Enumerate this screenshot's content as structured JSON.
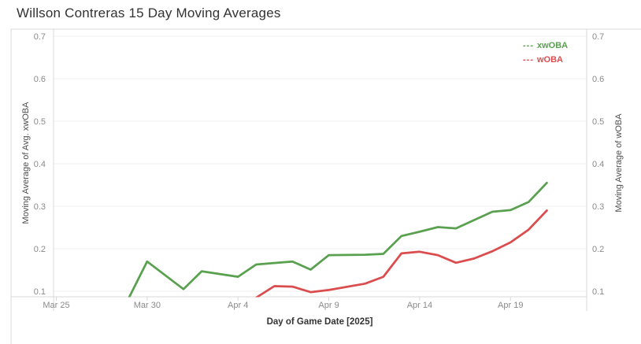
{
  "title": "Willson Contreras 15 Day Moving Averages",
  "legend": {
    "items": [
      {
        "dashes": "---",
        "label": "xwOBA"
      },
      {
        "dashes": "---",
        "label": "wOBA"
      }
    ]
  },
  "chart_data": {
    "type": "line",
    "title": "Willson Contreras 15 Day Moving Averages",
    "xlabel": "Day of Game Date [2025]",
    "ylabel_left": "Moving Average of Avg. xwOBA",
    "ylabel_right": "Moving Average of wOBA",
    "x_unit": "days since Mar 25, 2025",
    "x_tick_labels": [
      "Mar 25",
      "Mar 30",
      "Apr 4",
      "Apr 9",
      "Apr 14",
      "Apr 19"
    ],
    "x_tick_days": [
      0,
      5,
      10,
      15,
      20,
      25
    ],
    "y_ticks": [
      "0.1",
      "0.2",
      "0.3",
      "0.4",
      "0.5",
      "0.6",
      "0.7"
    ],
    "ylim": [
      0.086,
      0.716
    ],
    "xlim_days": [
      -0.2,
      29.2
    ],
    "grid": "horizontal",
    "legend_position": "top-right-inside",
    "series": [
      {
        "name": "xwOBA",
        "color": "#59A14F",
        "points": [
          {
            "date": "Mar 29",
            "d": 4,
            "v": 0.085
          },
          {
            "date": "Mar 30",
            "d": 5,
            "v": 0.17
          },
          {
            "date": "Apr 1",
            "d": 7,
            "v": 0.105
          },
          {
            "date": "Apr 2",
            "d": 8,
            "v": 0.147
          },
          {
            "date": "Apr 4",
            "d": 10,
            "v": 0.134
          },
          {
            "date": "Apr 5",
            "d": 11,
            "v": 0.163
          },
          {
            "date": "Apr 7",
            "d": 13,
            "v": 0.17
          },
          {
            "date": "Apr 8",
            "d": 14,
            "v": 0.151
          },
          {
            "date": "Apr 9",
            "d": 15,
            "v": 0.185
          },
          {
            "date": "Apr 11",
            "d": 17,
            "v": 0.186
          },
          {
            "date": "Apr 12",
            "d": 18,
            "v": 0.188
          },
          {
            "date": "Apr 13",
            "d": 19,
            "v": 0.23
          },
          {
            "date": "Apr 14",
            "d": 20,
            "v": 0.24
          },
          {
            "date": "Apr 15",
            "d": 21,
            "v": 0.251
          },
          {
            "date": "Apr 16",
            "d": 22,
            "v": 0.248
          },
          {
            "date": "Apr 18",
            "d": 24,
            "v": 0.287
          },
          {
            "date": "Apr 19",
            "d": 25,
            "v": 0.291
          },
          {
            "date": "Apr 20",
            "d": 26,
            "v": 0.31
          },
          {
            "date": "Apr 21",
            "d": 27,
            "v": 0.355
          }
        ]
      },
      {
        "name": "wOBA",
        "color": "#DB4C4E",
        "points": [
          {
            "date": "Apr 5",
            "d": 11,
            "v": 0.085
          },
          {
            "date": "Apr 6",
            "d": 12,
            "v": 0.112
          },
          {
            "date": "Apr 7",
            "d": 13,
            "v": 0.111
          },
          {
            "date": "Apr 8",
            "d": 14,
            "v": 0.098
          },
          {
            "date": "Apr 9",
            "d": 15,
            "v": 0.103
          },
          {
            "date": "Apr 11",
            "d": 17,
            "v": 0.118
          },
          {
            "date": "Apr 12",
            "d": 18,
            "v": 0.134
          },
          {
            "date": "Apr 13",
            "d": 19,
            "v": 0.189
          },
          {
            "date": "Apr 14",
            "d": 20,
            "v": 0.193
          },
          {
            "date": "Apr 15",
            "d": 21,
            "v": 0.185
          },
          {
            "date": "Apr 16",
            "d": 22,
            "v": 0.167
          },
          {
            "date": "Apr 17",
            "d": 23,
            "v": 0.177
          },
          {
            "date": "Apr 18",
            "d": 24,
            "v": 0.194
          },
          {
            "date": "Apr 19",
            "d": 25,
            "v": 0.215
          },
          {
            "date": "Apr 20",
            "d": 26,
            "v": 0.245
          },
          {
            "date": "Apr 21",
            "d": 27,
            "v": 0.29
          }
        ]
      }
    ]
  }
}
